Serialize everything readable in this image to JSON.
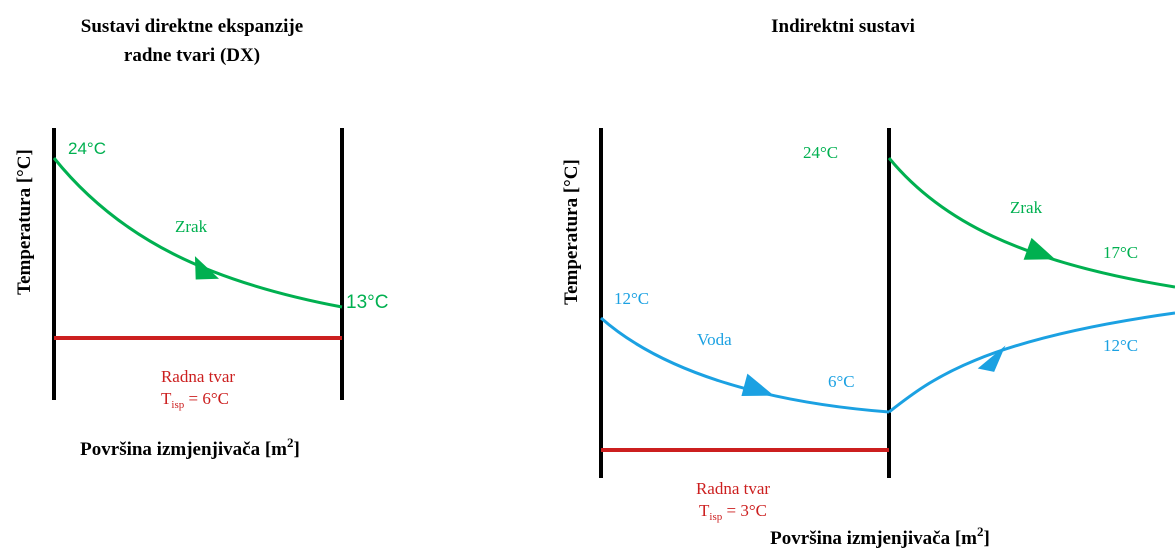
{
  "colors": {
    "air": "#00b050",
    "water": "#1ba1e2",
    "refrigerant": "#cc1f1f",
    "axis": "#000000"
  },
  "left_panel": {
    "title_line1": "Sustavi direktne ekspanzije",
    "title_line2": "radne tvari (DX)",
    "y_axis_label": "Temperatura [°C]",
    "x_axis_label": "Površina izmjenjivača [m",
    "x_axis_sup": "2",
    "x_axis_close": "]",
    "air_label": "Zrak",
    "air_in_temp": "24°C",
    "air_out_temp": "13°C",
    "refrigerant_label": "Radna tvar",
    "refrigerant_t_main": "T",
    "refrigerant_t_sub": "isp",
    "refrigerant_t_value": " = 6°C"
  },
  "right_panel": {
    "title": "Indirektni sustavi",
    "y_axis_label": "Temperatura [°C]",
    "x_axis_label": "Površina izmjenjivača [m",
    "x_axis_sup": "2",
    "x_axis_close": "]",
    "water_label": "Voda",
    "water_in_temp": "12°C",
    "water_out_temp": "6°C",
    "air_label": "Zrak",
    "air_in_temp": "24°C",
    "air_out_temp": "17°C",
    "water_return_temp": "12°C",
    "refrigerant_label": "Radna tvar",
    "refrigerant_t_main": "T",
    "refrigerant_t_sub": "isp",
    "refrigerant_t_value": " = 3°C"
  }
}
